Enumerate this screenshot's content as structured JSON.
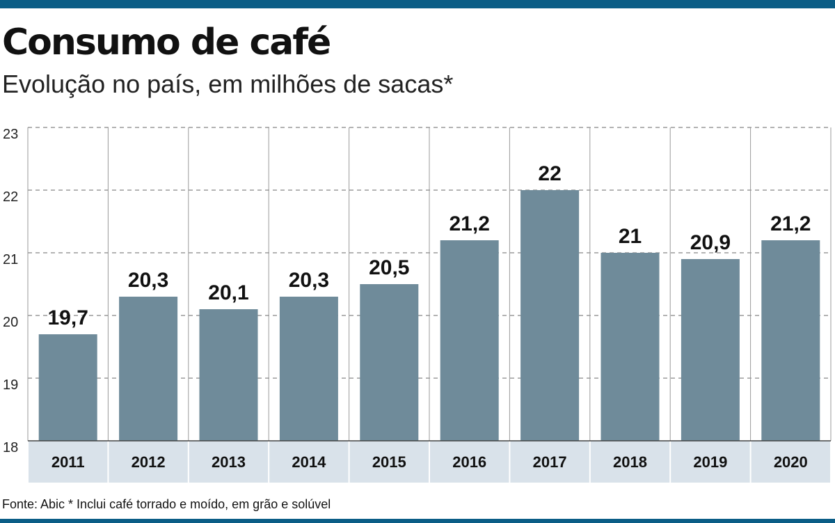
{
  "header": {
    "title": "Consumo de café",
    "subtitle": "Evolução no país, em milhões de sacas*"
  },
  "footer": {
    "source": "Fonte: Abic * Inclui café torrado e moído, em grão e solúvel"
  },
  "colors": {
    "bar": "#6f8b9a",
    "rule": "#0b5d86",
    "axis_band": "#d9e2ea"
  },
  "chart_data": {
    "type": "bar",
    "categories": [
      "2011",
      "2012",
      "2013",
      "2014",
      "2015",
      "2016",
      "2017",
      "2018",
      "2019",
      "2020"
    ],
    "values": [
      19.7,
      20.3,
      20.1,
      20.3,
      20.5,
      21.2,
      22,
      21,
      20.9,
      21.2
    ],
    "value_labels": [
      "19,7",
      "20,3",
      "20,1",
      "20,3",
      "20,5",
      "21,2",
      "22",
      "21",
      "20,9",
      "21,2"
    ],
    "title": "Consumo de café",
    "subtitle": "Evolução no país, em milhões de sacas*",
    "xlabel": "",
    "ylabel": "",
    "ylim": [
      18,
      23
    ],
    "yticks": [
      18,
      19,
      20,
      21,
      22,
      23
    ],
    "grid": true
  }
}
